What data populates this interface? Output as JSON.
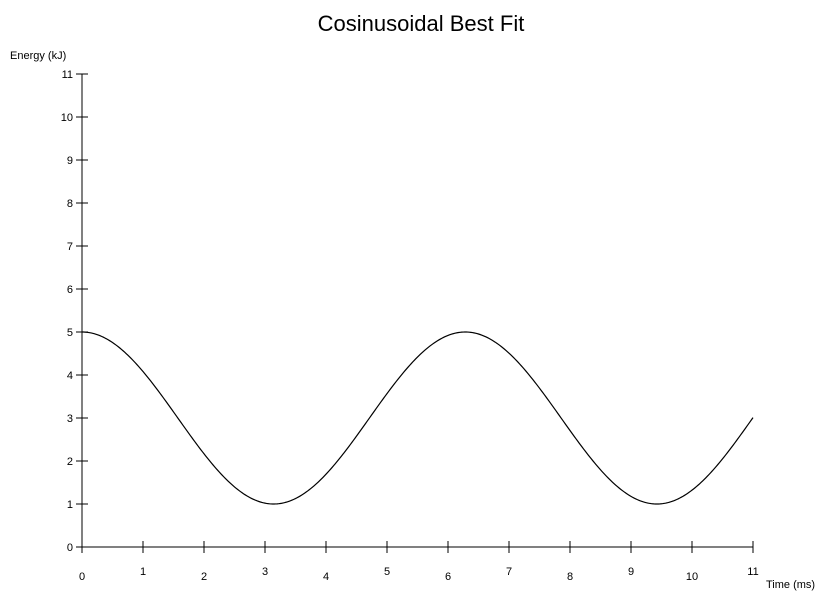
{
  "chart_data": {
    "type": "line",
    "title": "Cosinusoidal Best Fit",
    "xlabel": "Time (ms)",
    "ylabel": "Energy (kJ)",
    "xlim": [
      0,
      11
    ],
    "ylim": [
      0,
      11
    ],
    "x_ticks": [
      "0",
      "1",
      "2",
      "3",
      "4",
      "5",
      "6",
      "7",
      "8",
      "9",
      "10",
      "11"
    ],
    "y_ticks": [
      "0",
      "1",
      "2",
      "3",
      "4",
      "5",
      "6",
      "7",
      "8",
      "9",
      "10",
      "11"
    ],
    "grid": false,
    "series": [
      {
        "function": "3 + 2*cos(x)",
        "x": [
          0,
          0.5,
          1,
          1.5,
          2,
          2.5,
          3,
          3.14,
          3.5,
          4,
          4.5,
          5,
          5.5,
          6,
          6.28,
          6.5,
          7,
          7.5,
          8,
          8.5,
          9,
          9.42,
          9.5,
          10,
          10.5,
          11
        ],
        "y": [
          5.0,
          4.76,
          4.08,
          3.14,
          2.17,
          1.4,
          1.02,
          1.0,
          1.13,
          1.69,
          2.58,
          3.57,
          4.42,
          4.92,
          5.0,
          4.95,
          4.51,
          3.69,
          2.71,
          1.8,
          1.18,
          1.0,
          1.01,
          1.32,
          2.05,
          3.0
        ],
        "color": "#000000"
      }
    ]
  }
}
